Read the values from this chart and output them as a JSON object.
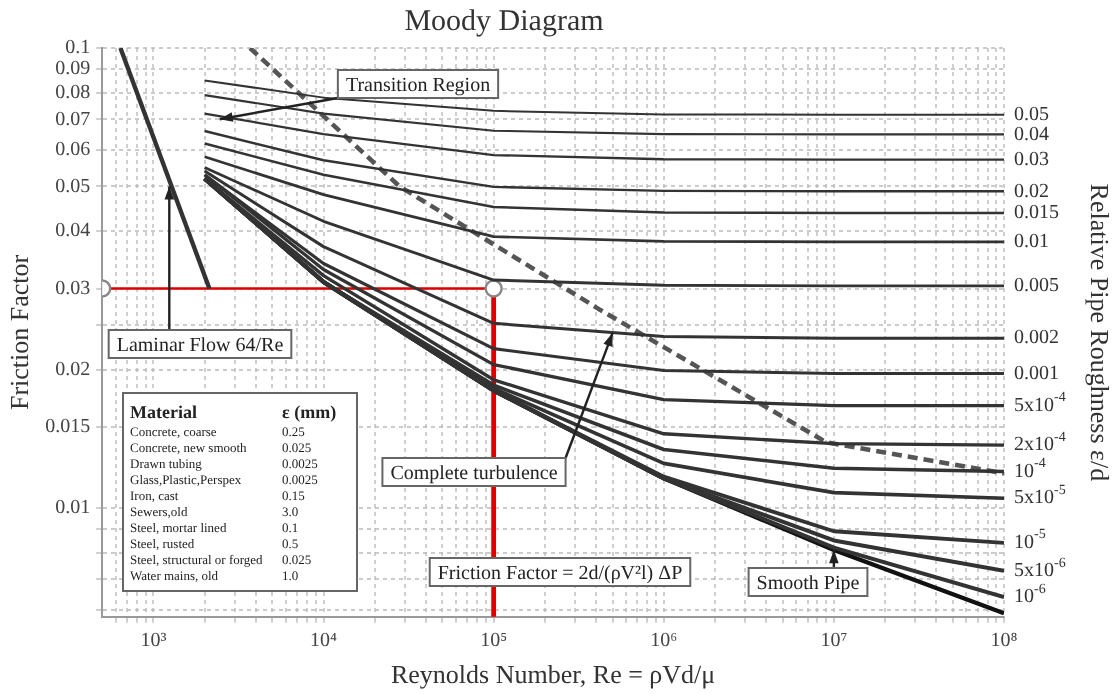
{
  "chart_data": {
    "type": "line",
    "title": "Moody Diagram",
    "xlabel": "Reynolds Number, Re = ρVd/μ",
    "ylabel": "Friction Factor",
    "y2label": "Relative Pipe Roughness ε/d",
    "log": "xy",
    "grid": true,
    "line_style": "solid",
    "marker": "none",
    "xlim": [
      500,
      100000000
    ],
    "xticks": [
      {
        "value": 600,
        "label": null
      },
      {
        "value": 700,
        "label": null
      },
      {
        "value": 800,
        "label": null
      },
      {
        "value": 900,
        "label": null
      },
      {
        "value": 1000,
        "label": "10³"
      },
      {
        "value": 2000,
        "label": null
      },
      {
        "value": 3000,
        "label": null
      },
      {
        "value": 4000,
        "label": null
      },
      {
        "value": 5000,
        "label": null
      },
      {
        "value": 6000,
        "label": null
      },
      {
        "value": 7000,
        "label": null
      },
      {
        "value": 8000,
        "label": null
      },
      {
        "value": 9000,
        "label": null
      },
      {
        "value": 10000,
        "label": "10⁴"
      },
      {
        "value": 20000,
        "label": null
      },
      {
        "value": 30000,
        "label": null
      },
      {
        "value": 40000,
        "label": null
      },
      {
        "value": 50000,
        "label": null
      },
      {
        "value": 60000,
        "label": null
      },
      {
        "value": 70000,
        "label": null
      },
      {
        "value": 80000,
        "label": null
      },
      {
        "value": 90000,
        "label": null
      },
      {
        "value": 100000,
        "label": "10⁵"
      },
      {
        "value": 200000,
        "label": null
      },
      {
        "value": 300000,
        "label": null
      },
      {
        "value": 400000,
        "label": null
      },
      {
        "value": 500000,
        "label": null
      },
      {
        "value": 600000,
        "label": null
      },
      {
        "value": 700000,
        "label": null
      },
      {
        "value": 800000,
        "label": null
      },
      {
        "value": 900000,
        "label": null
      },
      {
        "value": 1000000,
        "label": "10⁶"
      },
      {
        "value": 2000000,
        "label": null
      },
      {
        "value": 3000000,
        "label": null
      },
      {
        "value": 4000000,
        "label": null
      },
      {
        "value": 5000000,
        "label": null
      },
      {
        "value": 6000000,
        "label": null
      },
      {
        "value": 7000000,
        "label": null
      },
      {
        "value": 8000000,
        "label": null
      },
      {
        "value": 9000000,
        "label": null
      },
      {
        "value": 10000000,
        "label": "10⁷"
      },
      {
        "value": 20000000,
        "label": null
      },
      {
        "value": 30000000,
        "label": null
      },
      {
        "value": 40000000,
        "label": null
      },
      {
        "value": 50000000,
        "label": null
      },
      {
        "value": 60000000,
        "label": null
      },
      {
        "value": 70000000,
        "label": null
      },
      {
        "value": 80000000,
        "label": null
      },
      {
        "value": 90000000,
        "label": null
      },
      {
        "value": 100000000,
        "label": "10⁸"
      }
    ],
    "ylim": [
      0.0058,
      0.1
    ],
    "yticks": [
      {
        "value": 0.006,
        "label": null
      },
      {
        "value": 0.007,
        "label": null
      },
      {
        "value": 0.008,
        "label": null
      },
      {
        "value": 0.009,
        "label": null
      },
      0.01,
      0.015,
      0.02,
      {
        "value": 0.025,
        "label": null
      },
      0.03,
      0.04,
      0.05,
      0.06,
      0.07,
      0.08,
      0.09,
      0.1
    ],
    "series": [
      {
        "name": "0.05",
        "color": "#333333",
        "x": [
          2000,
          10000,
          100000,
          1000000,
          10000000,
          100000000
        ],
        "values": [
          0.085,
          0.078,
          0.073,
          0.0717,
          0.0716,
          0.0716
        ]
      },
      {
        "name": "0.04",
        "color": "#333333",
        "x": [
          2000,
          10000,
          100000,
          1000000,
          10000000,
          100000000
        ],
        "values": [
          0.079,
          0.072,
          0.0661,
          0.065,
          0.0649,
          0.0649
        ]
      },
      {
        "name": "0.03",
        "color": "#333333",
        "x": [
          2000,
          10000,
          100000,
          1000000,
          10000000,
          100000000
        ],
        "values": [
          0.072,
          0.065,
          0.0585,
          0.0573,
          0.0572,
          0.0572
        ]
      },
      {
        "name": "0.02",
        "color": "#333333",
        "x": [
          2000,
          10000,
          100000,
          1000000,
          10000000,
          100000000
        ],
        "values": [
          0.066,
          0.057,
          0.0499,
          0.0489,
          0.0488,
          0.0488
        ]
      },
      {
        "name": "0.015",
        "color": "#333333",
        "x": [
          2000,
          10000,
          100000,
          1000000,
          10000000,
          100000000
        ],
        "values": [
          0.062,
          0.053,
          0.0451,
          0.0439,
          0.0438,
          0.0438
        ]
      },
      {
        "name": "0.01",
        "color": "#333333",
        "x": [
          2000,
          10000,
          100000,
          1000000,
          10000000,
          100000000
        ],
        "values": [
          0.058,
          0.048,
          0.0389,
          0.038,
          0.0379,
          0.0379
        ]
      },
      {
        "name": "0.005",
        "color": "#333333",
        "x": [
          2000,
          10000,
          100000,
          1000000,
          10000000,
          100000000
        ],
        "values": [
          0.055,
          0.042,
          0.0313,
          0.0305,
          0.0304,
          0.0304
        ]
      },
      {
        "name": "0.002",
        "color": "#333333",
        "x": [
          2000,
          10000,
          100000,
          1000000,
          10000000,
          100000000
        ],
        "values": [
          0.054,
          0.037,
          0.0252,
          0.0236,
          0.0234,
          0.0234
        ]
      },
      {
        "name": "0.001",
        "color": "#333333",
        "x": [
          2000,
          10000,
          100000,
          1000000,
          10000000,
          100000000
        ],
        "values": [
          0.053,
          0.034,
          0.0222,
          0.0199,
          0.0196,
          0.0196
        ]
      },
      {
        "name": "5x10$^{-4}$",
        "color": "#333333",
        "x": [
          2000,
          10000,
          100000,
          1000000,
          10000000,
          100000000
        ],
        "values": [
          0.053,
          0.033,
          0.0205,
          0.0172,
          0.0167,
          0.0167
        ]
      },
      {
        "name": "2x10$^{-4}$",
        "color": "#333333",
        "x": [
          2000,
          10000,
          100000,
          1000000,
          10000000,
          100000000
        ],
        "values": [
          0.052,
          0.032,
          0.019,
          0.0145,
          0.0138,
          0.0137
        ]
      },
      {
        "name": "10$^{-4}$",
        "color": "#333333",
        "x": [
          2000,
          10000,
          100000,
          1000000,
          10000000,
          100000000
        ],
        "values": [
          0.052,
          0.031,
          0.0185,
          0.0134,
          0.0122,
          0.012
        ]
      },
      {
        "name": "5x10$^{-5}$",
        "color": "#333333",
        "x": [
          2000,
          10000,
          100000,
          1000000,
          10000000,
          100000000
        ],
        "values": [
          0.052,
          0.031,
          0.0182,
          0.0125,
          0.0108,
          0.0105
        ]
      },
      {
        "name": "10$^{-5}$",
        "color": "#333333",
        "x": [
          2000,
          10000,
          100000,
          1000000,
          10000000,
          100000000
        ],
        "values": [
          0.052,
          0.031,
          0.018,
          0.0117,
          0.0089,
          0.0084
        ]
      },
      {
        "name": "5x10$^{-6}$",
        "color": "#333333",
        "x": [
          2000,
          10000,
          100000,
          1000000,
          10000000,
          100000000
        ],
        "values": [
          0.052,
          0.031,
          0.018,
          0.0116,
          0.0085,
          0.0073
        ]
      },
      {
        "name": "10$^{-6}$",
        "color": "#333333",
        "x": [
          2000,
          10000,
          100000,
          1000000,
          10000000,
          100000000
        ],
        "values": [
          0.052,
          0.031,
          0.018,
          0.0116,
          0.0082,
          0.0064
        ]
      },
      {
        "color": "#111111",
        "x": [
          2000,
          10000,
          100000,
          1000000,
          10000000,
          100000000
        ],
        "values": [
          0.052,
          0.031,
          0.018,
          0.0116,
          0.0081,
          0.0059
        ]
      },
      {
        "color": "#333333",
        "x": [
          640,
          2133
        ],
        "values": [
          0.1,
          0.03
        ]
      },
      {
        "color": "#555555",
        "line_style": "dashed",
        "x": [
          3700,
          28000,
          420000,
          9000000,
          100000000
        ],
        "values": [
          0.1,
          0.05,
          0.027,
          0.0139,
          0.0119
        ]
      },
      {
        "color": "#dd0000",
        "marker": "circle",
        "x": [
          500,
          100000
        ],
        "values": [
          0.03,
          0.03
        ]
      },
      {
        "color": "#dd0000",
        "x": [
          100000,
          100000
        ],
        "values": [
          0.03,
          0.0058
        ]
      }
    ],
    "annotations": [
      {
        "text": "Transition Region",
        "x": 2450,
        "y": 0.07
      },
      {
        "text": "Laminar Flow 64/Re",
        "x": 1240,
        "y": 0.05
      },
      {
        "text": "Complete turbulence",
        "x": 500000,
        "y": 0.024
      },
      {
        "text": "Smooth Pipe",
        "x": 10000000,
        "y": 0.0081
      },
      "Friction Factor = 2d/(ρV²l) ΔP",
      "Material\tε (mm)",
      "Concrete, coarse\t0.25",
      "Concrete, new smooth\t0.025",
      "Drawn tubing\t0.0025",
      "Glass,Plastic,Perspex\t0.0025",
      "Iron, cast\t0.15",
      "Sewers,old\t3.0",
      "Steel, mortar lined\t0.1",
      "Steel, rusted\t0.5",
      "Steel, structural or forged\t0.025",
      "Water mains, old\t1.0"
    ]
  }
}
